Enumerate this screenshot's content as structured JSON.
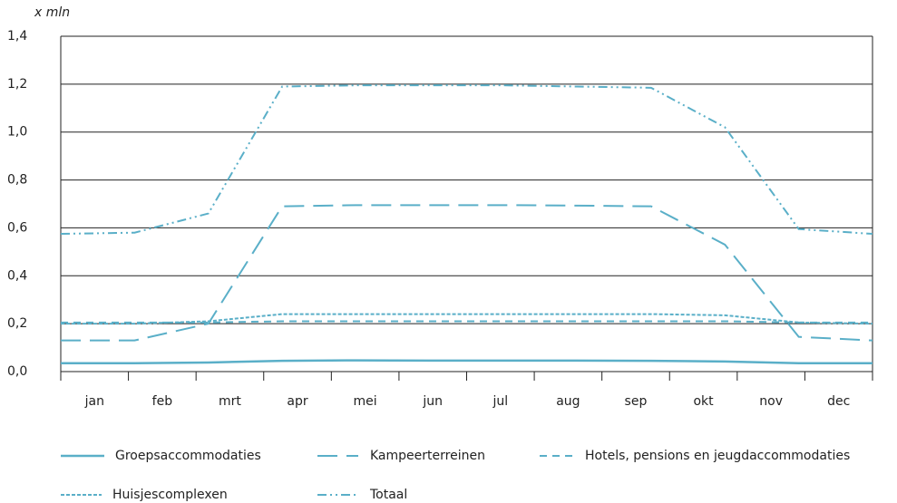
{
  "chart_data": {
    "type": "line",
    "ylabel": "x mln",
    "categories": [
      "jan",
      "feb",
      "mrt",
      "apr",
      "mei",
      "jun",
      "jul",
      "aug",
      "sep",
      "okt",
      "nov",
      "dec"
    ],
    "ylim": [
      0,
      1.4
    ],
    "yticks": [
      {
        "value": 0,
        "label": "0,0"
      },
      {
        "value": 0.2,
        "label": "0,2"
      },
      {
        "value": 0.4,
        "label": "0,4"
      },
      {
        "value": 0.6,
        "label": "0,6"
      },
      {
        "value": 0.8,
        "label": "0,8"
      },
      {
        "value": 1.0,
        "label": "1,0"
      },
      {
        "value": 1.2,
        "label": "1,2"
      },
      {
        "value": 1.4,
        "label": "1,4"
      }
    ],
    "grid": true,
    "series": [
      {
        "name": "Groepsaccommodaties",
        "color": "#5aafc8",
        "values": [
          0.035,
          0.035,
          0.038,
          0.045,
          0.047,
          0.046,
          0.046,
          0.046,
          0.045,
          0.042,
          0.035,
          0.035
        ]
      },
      {
        "name": "Kampeerterreinen",
        "color": "#5aafc8",
        "values": [
          0.13,
          0.13,
          0.2,
          0.69,
          0.695,
          0.695,
          0.695,
          0.693,
          0.69,
          0.53,
          0.145,
          0.13
        ]
      },
      {
        "name": "Hotels, pensions en jeugdaccommodaties",
        "color": "#5aafc8",
        "values": [
          0.205,
          0.205,
          0.205,
          0.21,
          0.21,
          0.21,
          0.21,
          0.21,
          0.21,
          0.21,
          0.205,
          0.205
        ]
      },
      {
        "name": "Huisjescomplexen",
        "color": "#5aafc8",
        "values": [
          0.2,
          0.2,
          0.21,
          0.24,
          0.24,
          0.24,
          0.24,
          0.24,
          0.24,
          0.235,
          0.205,
          0.2
        ]
      },
      {
        "name": "Totaal",
        "color": "#5aafc8",
        "values": [
          0.575,
          0.58,
          0.66,
          1.19,
          1.195,
          1.195,
          1.195,
          1.19,
          1.185,
          1.02,
          0.595,
          0.575
        ]
      }
    ]
  }
}
